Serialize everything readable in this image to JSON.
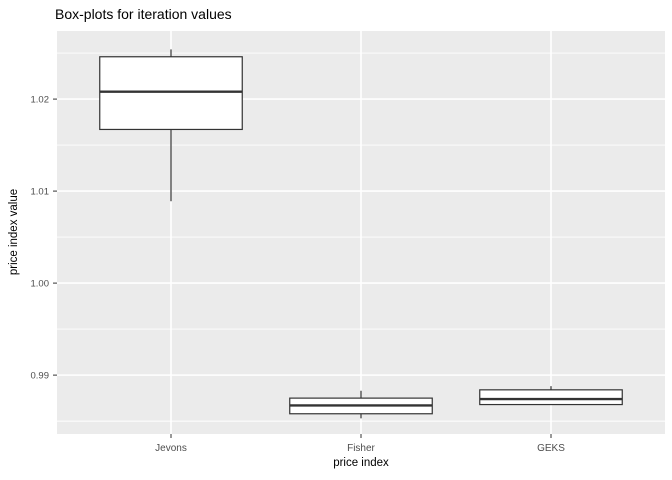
{
  "chart_data": {
    "type": "boxplot",
    "title": "Box-plots for iteration values",
    "xlabel": "price index",
    "ylabel": "price index value",
    "categories": [
      "Jevons",
      "Fisher",
      "GEKS"
    ],
    "series": [
      {
        "name": "Jevons",
        "min": 1.0089,
        "q1": 1.0167,
        "median": 1.0208,
        "q3": 1.0246,
        "max": 1.0254
      },
      {
        "name": "Fisher",
        "min": 0.9853,
        "q1": 0.9858,
        "median": 0.9867,
        "q3": 0.9875,
        "max": 0.9883
      },
      {
        "name": "GEKS",
        "min": 0.9868,
        "q1": 0.9868,
        "median": 0.9874,
        "q3": 0.9884,
        "max": 0.9888
      }
    ],
    "ylim": [
      0.9836,
      1.0274
    ],
    "y_major_ticks": [
      {
        "value": 0.99,
        "label": "0.99"
      },
      {
        "value": 1.0,
        "label": "1.00"
      },
      {
        "value": 1.01,
        "label": "1.01"
      },
      {
        "value": 1.02,
        "label": "1.02"
      }
    ],
    "y_minor_ticks": [
      0.985,
      0.995,
      1.005,
      1.015,
      1.025
    ],
    "grid": "major+minor horizontal, major vertical at categories",
    "legend": "none"
  },
  "style": {
    "background": "#FFFFFF",
    "panel_bg": "#EBEBEB",
    "grid_color": "#FFFFFF",
    "box_stroke": "#333333",
    "box_fill": "#FFFFFF",
    "tick_mark_color": "#333333",
    "tick_label_color": "#4D4D4D",
    "axis_title_color": "#000000",
    "title_color": "#000000"
  }
}
